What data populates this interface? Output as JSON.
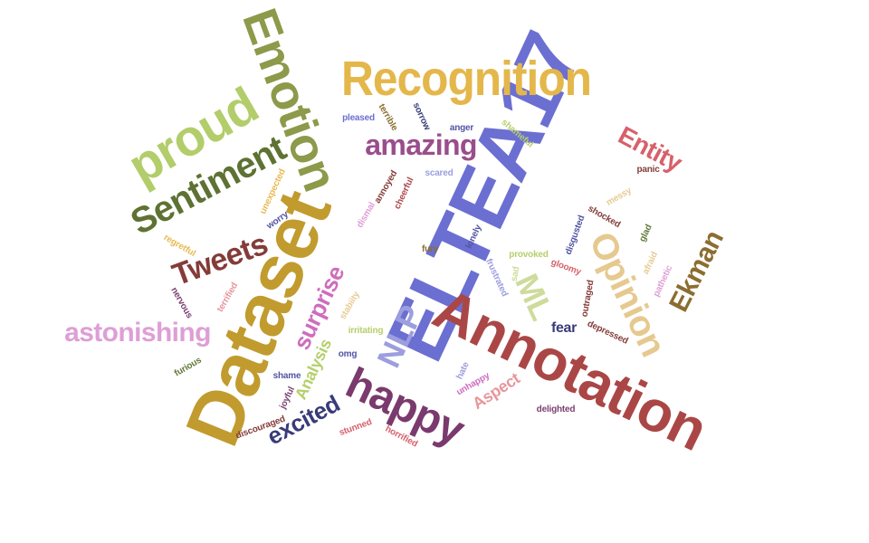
{
  "words": [
    {
      "text": "ELTEA17",
      "color": "#6b6fd1"
    },
    {
      "text": "Dataset",
      "color": "#c19b2e"
    },
    {
      "text": "Annotation",
      "color": "#aa4746"
    },
    {
      "text": "Emotion",
      "color": "#8c9a4a"
    },
    {
      "text": "Recognition",
      "color": "#e4b74b"
    },
    {
      "text": "Sentiment",
      "color": "#5e7233"
    },
    {
      "text": "proud",
      "color": "#b2cd6a"
    },
    {
      "text": "amazing",
      "color": "#9a4d8c"
    },
    {
      "text": "happy",
      "color": "#7a3a6e"
    },
    {
      "text": "Opinion",
      "color": "#e6c98f"
    },
    {
      "text": "Ekman",
      "color": "#8c6d31"
    },
    {
      "text": "Tweets",
      "color": "#843c39"
    },
    {
      "text": "astonishing",
      "color": "#de9ed6"
    },
    {
      "text": "surprise",
      "color": "#ce6dbd"
    },
    {
      "text": "NLP",
      "color": "#9c9ede"
    },
    {
      "text": "ML",
      "color": "#cedb9c"
    },
    {
      "text": "Entity",
      "color": "#d6616b"
    },
    {
      "text": "excited",
      "color": "#393b79"
    },
    {
      "text": "Analysis",
      "color": "#b5cf6b"
    },
    {
      "text": "Aspect",
      "color": "#e7969c"
    },
    {
      "text": "fear",
      "color": "#393b79"
    },
    {
      "text": "pleased",
      "color": "#6b6ecf"
    },
    {
      "text": "terrible",
      "color": "#8c6d31"
    },
    {
      "text": "sorrow",
      "color": "#393b79"
    },
    {
      "text": "anger",
      "color": "#5254a3"
    },
    {
      "text": "shameful",
      "color": "#b5cf6b"
    },
    {
      "text": "panic",
      "color": "#843c39"
    },
    {
      "text": "scared",
      "color": "#9c9ede"
    },
    {
      "text": "messy",
      "color": "#e7cb94"
    },
    {
      "text": "unexpected",
      "color": "#e7ba52"
    },
    {
      "text": "annoyed",
      "color": "#843c39"
    },
    {
      "text": "cheerful",
      "color": "#ad494a"
    },
    {
      "text": "worry",
      "color": "#5254a3"
    },
    {
      "text": "dismal",
      "color": "#de9ed6"
    },
    {
      "text": "shocked",
      "color": "#843c39"
    },
    {
      "text": "glad",
      "color": "#637939"
    },
    {
      "text": "regretful",
      "color": "#e7ba52"
    },
    {
      "text": "lonely",
      "color": "#5254a3"
    },
    {
      "text": "disgusted",
      "color": "#5254a3"
    },
    {
      "text": "fury",
      "color": "#8c6d31"
    },
    {
      "text": "provoked",
      "color": "#b5cf6b"
    },
    {
      "text": "gloomy",
      "color": "#d6616b"
    },
    {
      "text": "afraid",
      "color": "#e7cb94"
    },
    {
      "text": "sad",
      "color": "#cedb9c"
    },
    {
      "text": "frustrated",
      "color": "#9c9ede"
    },
    {
      "text": "pathetic",
      "color": "#de9ed6"
    },
    {
      "text": "nervous",
      "color": "#7b4173"
    },
    {
      "text": "terrified",
      "color": "#e7969c"
    },
    {
      "text": "stabiity",
      "color": "#e7cb94"
    },
    {
      "text": "outraged",
      "color": "#843c39"
    },
    {
      "text": "irritating",
      "color": "#b5cf6b"
    },
    {
      "text": "omg",
      "color": "#5254a3"
    },
    {
      "text": "depressed",
      "color": "#843c39"
    },
    {
      "text": "furious",
      "color": "#637939"
    },
    {
      "text": "shame",
      "color": "#5254a3"
    },
    {
      "text": "joyful",
      "color": "#7b4173"
    },
    {
      "text": "hate",
      "color": "#9c9ede"
    },
    {
      "text": "unhappy",
      "color": "#ce6dbd"
    },
    {
      "text": "delighted",
      "color": "#7b4173"
    },
    {
      "text": "discouraged",
      "color": "#843c39"
    },
    {
      "text": "stunned",
      "color": "#d6616b"
    },
    {
      "text": "horrified",
      "color": "#d6616b"
    }
  ]
}
